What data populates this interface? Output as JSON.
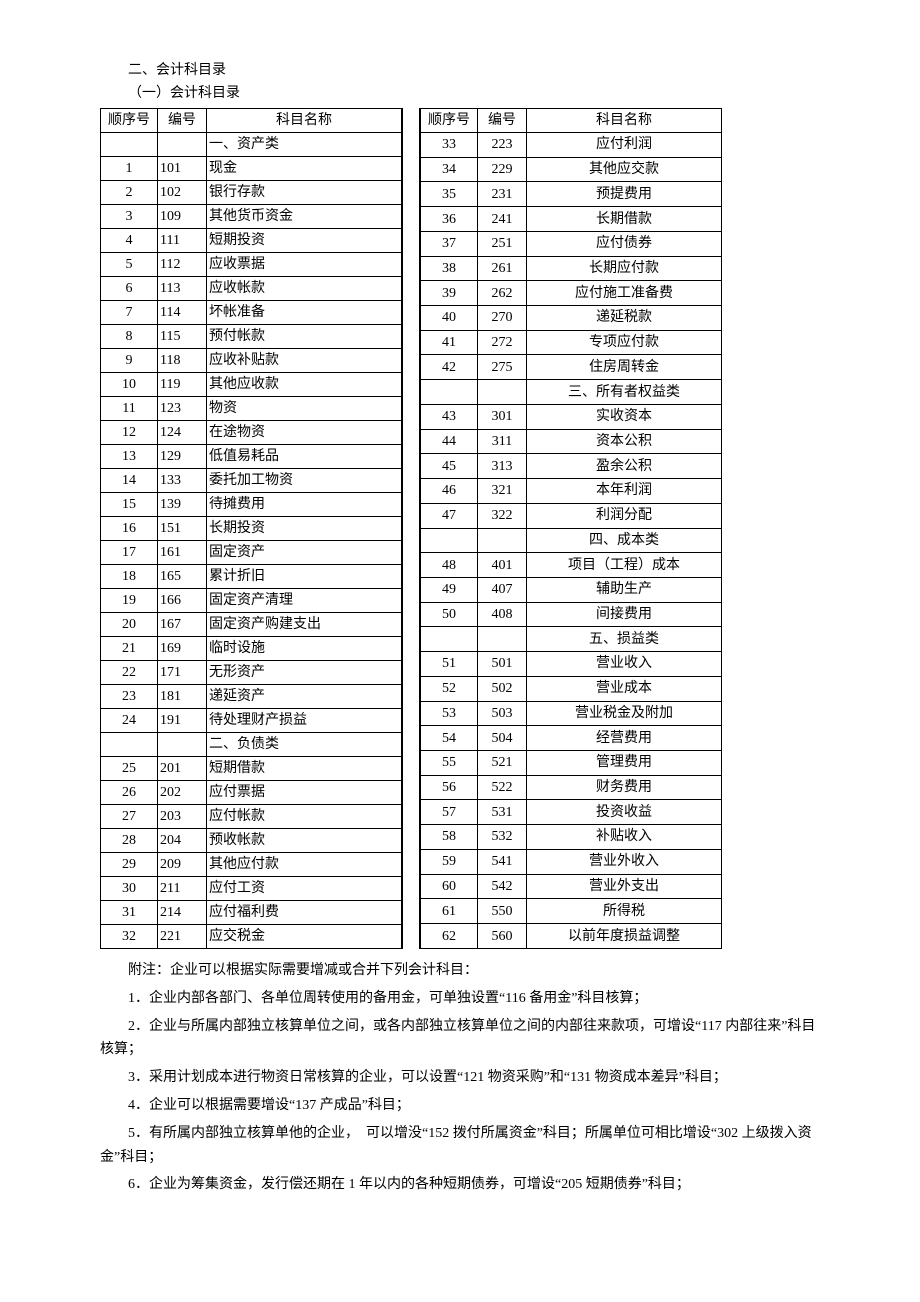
{
  "heading": "二、会计科目录",
  "subheading": "（一）会计科目录",
  "headers": {
    "seq": "顺序号",
    "code": "编号",
    "name": "科目名称"
  },
  "leftRows": [
    {
      "seq": "",
      "code": "",
      "name": "一、资产类"
    },
    {
      "seq": "1",
      "code": "101",
      "name": "现金"
    },
    {
      "seq": "2",
      "code": "102",
      "name": "银行存款"
    },
    {
      "seq": "3",
      "code": "109",
      "name": "其他货币资金"
    },
    {
      "seq": "4",
      "code": "111",
      "name": "短期投资"
    },
    {
      "seq": "5",
      "code": "112",
      "name": "应收票据"
    },
    {
      "seq": "6",
      "code": "113",
      "name": "应收帐款"
    },
    {
      "seq": "7",
      "code": "114",
      "name": "坏帐准备"
    },
    {
      "seq": "8",
      "code": "115",
      "name": "预付帐款"
    },
    {
      "seq": "9",
      "code": "118",
      "name": "应收补贴款"
    },
    {
      "seq": "10",
      "code": "119",
      "name": "其他应收款"
    },
    {
      "seq": "11",
      "code": "123",
      "name": "物资"
    },
    {
      "seq": "12",
      "code": "124",
      "name": "在途物资"
    },
    {
      "seq": "13",
      "code": "129",
      "name": "低值易耗品"
    },
    {
      "seq": "14",
      "code": "133",
      "name": "委托加工物资"
    },
    {
      "seq": "15",
      "code": "139",
      "name": "待摊费用"
    },
    {
      "seq": "16",
      "code": "151",
      "name": "长期投资"
    },
    {
      "seq": "17",
      "code": "161",
      "name": "固定资产"
    },
    {
      "seq": "18",
      "code": "165",
      "name": "累计折旧"
    },
    {
      "seq": "19",
      "code": "166",
      "name": "固定资产清理"
    },
    {
      "seq": "20",
      "code": "167",
      "name": "固定资产购建支出"
    },
    {
      "seq": "21",
      "code": "169",
      "name": "临时设施"
    },
    {
      "seq": "22",
      "code": "171",
      "name": "无形资产"
    },
    {
      "seq": "23",
      "code": "181",
      "name": "递延资产"
    },
    {
      "seq": "24",
      "code": "191",
      "name": "待处理财产损益"
    },
    {
      "seq": "",
      "code": "",
      "name": "二、负债类"
    },
    {
      "seq": "25",
      "code": "201",
      "name": "短期借款"
    },
    {
      "seq": "26",
      "code": "202",
      "name": "应付票据"
    },
    {
      "seq": "27",
      "code": "203",
      "name": "应付帐款"
    },
    {
      "seq": "28",
      "code": "204",
      "name": "预收帐款"
    },
    {
      "seq": "29",
      "code": "209",
      "name": "其他应付款"
    },
    {
      "seq": "30",
      "code": "211",
      "name": "应付工资"
    },
    {
      "seq": "31",
      "code": "214",
      "name": "应付福利费"
    },
    {
      "seq": "32",
      "code": "221",
      "name": "应交税金"
    }
  ],
  "rightRows": [
    {
      "seq": "33",
      "code": "223",
      "name": "应付利润"
    },
    {
      "seq": "34",
      "code": "229",
      "name": "其他应交款"
    },
    {
      "seq": "35",
      "code": "231",
      "name": "预提费用"
    },
    {
      "seq": "36",
      "code": "241",
      "name": "长期借款"
    },
    {
      "seq": "37",
      "code": "251",
      "name": "应付债券"
    },
    {
      "seq": "38",
      "code": "261",
      "name": "长期应付款"
    },
    {
      "seq": "39",
      "code": "262",
      "name": "应付施工准备费"
    },
    {
      "seq": "40",
      "code": "270",
      "name": "递延税款"
    },
    {
      "seq": "41",
      "code": "272",
      "name": "专项应付款"
    },
    {
      "seq": "42",
      "code": "275",
      "name": "住房周转金"
    },
    {
      "seq": "",
      "code": "",
      "name": "三、所有者权益类"
    },
    {
      "seq": "43",
      "code": "301",
      "name": "实收资本"
    },
    {
      "seq": "44",
      "code": "311",
      "name": "资本公积"
    },
    {
      "seq": "45",
      "code": "313",
      "name": "盈余公积"
    },
    {
      "seq": "46",
      "code": "321",
      "name": "本年利润"
    },
    {
      "seq": "47",
      "code": "322",
      "name": "利润分配"
    },
    {
      "seq": "",
      "code": "",
      "name": "四、成本类"
    },
    {
      "seq": "48",
      "code": "401",
      "name": "项目（工程）成本"
    },
    {
      "seq": "49",
      "code": "407",
      "name": "辅助生产"
    },
    {
      "seq": "50",
      "code": "408",
      "name": "间接费用"
    },
    {
      "seq": "",
      "code": "",
      "name": "五、损益类"
    },
    {
      "seq": "51",
      "code": "501",
      "name": "营业收入"
    },
    {
      "seq": "52",
      "code": "502",
      "name": "营业成本"
    },
    {
      "seq": "53",
      "code": "503",
      "name": "营业税金及附加"
    },
    {
      "seq": "54",
      "code": "504",
      "name": "经营费用"
    },
    {
      "seq": "55",
      "code": "521",
      "name": "管理费用"
    },
    {
      "seq": "56",
      "code": "522",
      "name": "财务费用"
    },
    {
      "seq": "57",
      "code": "531",
      "name": "投资收益"
    },
    {
      "seq": "58",
      "code": "532",
      "name": "补贴收入"
    },
    {
      "seq": "59",
      "code": "541",
      "name": "营业外收入"
    },
    {
      "seq": "60",
      "code": "542",
      "name": "营业外支出"
    },
    {
      "seq": "61",
      "code": "550",
      "name": "所得税"
    },
    {
      "seq": "62",
      "code": "560",
      "name": "以前年度损益调整"
    }
  ],
  "notes": [
    "附注：企业可以根据实际需要增减或合并下列会计科目：",
    "1．企业内部各部门、各单位周转使用的备用金，可单独设置“116 备用金”科目核算；",
    "2．企业与所属内部独立核算单位之间，或各内部独立核算单位之间的内部往来款项，可增设“117 内部往来”科目核算；",
    "3．采用计划成本进行物资日常核算的企业，可以设置“121 物资采购”和“131 物资成本差异”科目；",
    "4．企业可以根据需要增设“137 产成品”科目；",
    "5．有所属内部独立核算单他的企业，　可以增没“152 拨付所属资金”科目；所属单位可相比增设“302 上级拨入资金”科目；",
    "6．企业为筹集资金，发行偿还期在 1 年以内的各种短期债券，可增设“205 短期债券”科目；"
  ]
}
